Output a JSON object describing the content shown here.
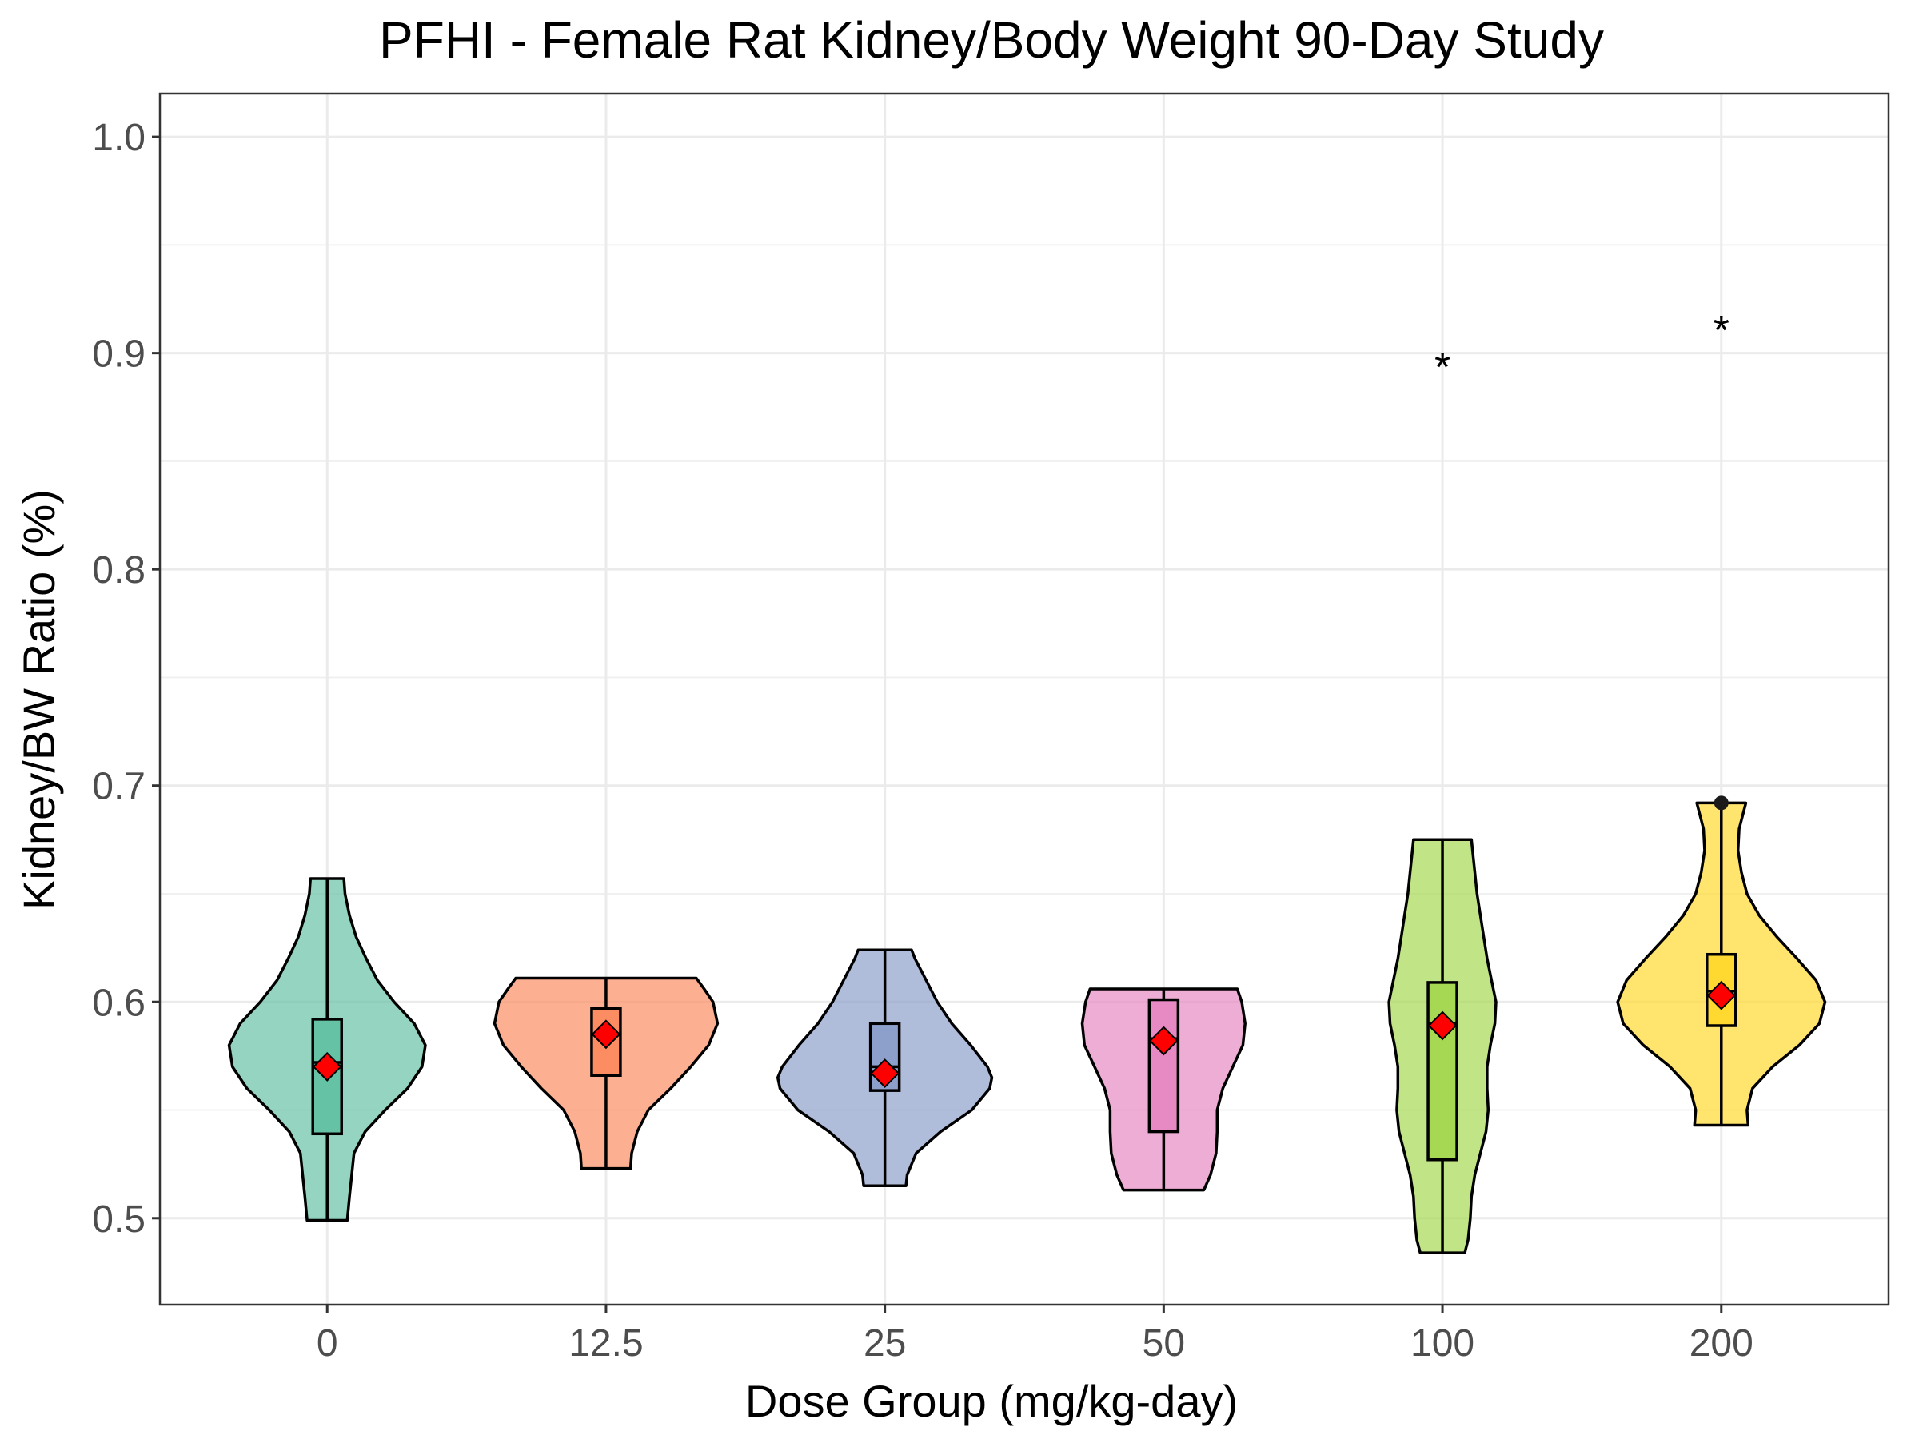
{
  "chart_data": {
    "type": "violin",
    "title": "PFHI - Female Rat Kidney/Body Weight 90-Day Study",
    "xlabel": "Dose Group (mg/kg-day)",
    "ylabel": "Kidney/BW Ratio (%)",
    "ylim": [
      0.46,
      1.02
    ],
    "yticks": [
      "0.5",
      "0.6",
      "0.7",
      "0.8",
      "0.9",
      "1.0"
    ],
    "grid": true,
    "categories": [
      "0",
      "12.5",
      "25",
      "50",
      "100",
      "200"
    ],
    "groups": [
      {
        "dose": "0",
        "color": "#66c2a5",
        "min": 0.499,
        "q1": 0.539,
        "median": 0.572,
        "q3": 0.592,
        "max": 0.657,
        "mean": 0.57,
        "density": [
          [
            0.499,
            0.18
          ],
          [
            0.51,
            0.2
          ],
          [
            0.52,
            0.22
          ],
          [
            0.53,
            0.24
          ],
          [
            0.54,
            0.34
          ],
          [
            0.55,
            0.52
          ],
          [
            0.56,
            0.72
          ],
          [
            0.57,
            0.85
          ],
          [
            0.58,
            0.88
          ],
          [
            0.59,
            0.78
          ],
          [
            0.6,
            0.6
          ],
          [
            0.61,
            0.45
          ],
          [
            0.62,
            0.35
          ],
          [
            0.63,
            0.26
          ],
          [
            0.64,
            0.2
          ],
          [
            0.65,
            0.16
          ],
          [
            0.657,
            0.15
          ]
        ]
      },
      {
        "dose": "12.5",
        "color": "#fc8d62",
        "min": 0.523,
        "q1": 0.566,
        "median": 0.585,
        "q3": 0.597,
        "max": 0.611,
        "mean": 0.585,
        "density": [
          [
            0.523,
            0.22
          ],
          [
            0.53,
            0.23
          ],
          [
            0.54,
            0.28
          ],
          [
            0.55,
            0.38
          ],
          [
            0.56,
            0.58
          ],
          [
            0.57,
            0.76
          ],
          [
            0.58,
            0.92
          ],
          [
            0.59,
            1.0
          ],
          [
            0.6,
            0.96
          ],
          [
            0.606,
            0.88
          ],
          [
            0.611,
            0.81
          ]
        ]
      },
      {
        "dose": "25",
        "color": "#8da0cb",
        "min": 0.515,
        "q1": 0.559,
        "median": 0.57,
        "q3": 0.59,
        "max": 0.624,
        "mean": 0.567,
        "density": [
          [
            0.515,
            0.19
          ],
          [
            0.52,
            0.2
          ],
          [
            0.53,
            0.28
          ],
          [
            0.54,
            0.5
          ],
          [
            0.55,
            0.78
          ],
          [
            0.56,
            0.94
          ],
          [
            0.565,
            0.96
          ],
          [
            0.57,
            0.92
          ],
          [
            0.58,
            0.77
          ],
          [
            0.59,
            0.6
          ],
          [
            0.6,
            0.47
          ],
          [
            0.61,
            0.37
          ],
          [
            0.62,
            0.27
          ],
          [
            0.624,
            0.24
          ]
        ]
      },
      {
        "dose": "50",
        "color": "#e78ac3",
        "min": 0.513,
        "q1": 0.54,
        "median": 0.583,
        "q3": 0.601,
        "max": 0.606,
        "mean": 0.582,
        "density": [
          [
            0.513,
            0.36
          ],
          [
            0.52,
            0.42
          ],
          [
            0.53,
            0.47
          ],
          [
            0.54,
            0.48
          ],
          [
            0.55,
            0.48
          ],
          [
            0.56,
            0.53
          ],
          [
            0.57,
            0.62
          ],
          [
            0.58,
            0.71
          ],
          [
            0.59,
            0.73
          ],
          [
            0.6,
            0.7
          ],
          [
            0.606,
            0.66
          ]
        ]
      },
      {
        "dose": "100",
        "color": "#a6d854",
        "min": 0.484,
        "q1": 0.527,
        "median": 0.59,
        "q3": 0.609,
        "max": 0.675,
        "mean": 0.589,
        "significant": true,
        "sig_y": 0.898,
        "density": [
          [
            0.484,
            0.2
          ],
          [
            0.49,
            0.23
          ],
          [
            0.5,
            0.25
          ],
          [
            0.51,
            0.26
          ],
          [
            0.52,
            0.29
          ],
          [
            0.53,
            0.34
          ],
          [
            0.54,
            0.39
          ],
          [
            0.55,
            0.41
          ],
          [
            0.56,
            0.4
          ],
          [
            0.57,
            0.4
          ],
          [
            0.58,
            0.43
          ],
          [
            0.59,
            0.47
          ],
          [
            0.6,
            0.48
          ],
          [
            0.61,
            0.44
          ],
          [
            0.62,
            0.4
          ],
          [
            0.63,
            0.37
          ],
          [
            0.64,
            0.34
          ],
          [
            0.65,
            0.31
          ],
          [
            0.66,
            0.29
          ],
          [
            0.67,
            0.27
          ],
          [
            0.675,
            0.26
          ]
        ]
      },
      {
        "dose": "200",
        "color": "#ffd92f",
        "min": 0.543,
        "q1": 0.589,
        "median": 0.605,
        "q3": 0.622,
        "max": 0.692,
        "mean": 0.603,
        "significant": true,
        "sig_y": 0.915,
        "outliers": [
          0.692
        ],
        "density": [
          [
            0.543,
            0.24
          ],
          [
            0.55,
            0.23
          ],
          [
            0.56,
            0.28
          ],
          [
            0.57,
            0.46
          ],
          [
            0.58,
            0.7
          ],
          [
            0.59,
            0.88
          ],
          [
            0.6,
            0.93
          ],
          [
            0.61,
            0.85
          ],
          [
            0.62,
            0.68
          ],
          [
            0.63,
            0.5
          ],
          [
            0.64,
            0.34
          ],
          [
            0.65,
            0.23
          ],
          [
            0.66,
            0.18
          ],
          [
            0.67,
            0.15
          ],
          [
            0.68,
            0.16
          ],
          [
            0.686,
            0.19
          ],
          [
            0.692,
            0.22
          ]
        ]
      }
    ],
    "mean_marker": {
      "shape": "diamond",
      "color": "#ff0000"
    },
    "significance_marker": "*"
  }
}
